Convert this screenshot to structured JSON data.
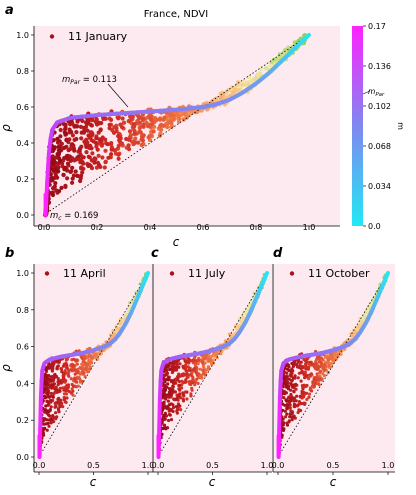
{
  "figure": {
    "title": "France, NDVI",
    "colorbar": {
      "label": "m",
      "min": 0.0,
      "max": 0.17,
      "ticks": [
        "0.17",
        "0.136",
        "0.102",
        "0.068",
        "0.034",
        "0.0"
      ],
      "annotation": "m_Par",
      "colors": [
        "#22e8f4",
        "#7f88f0",
        "#ff22ff"
      ]
    }
  },
  "chart_data": [
    {
      "panel": "a",
      "type": "scatter",
      "legend": "11 January",
      "xlabel": "c",
      "ylabel": "ρ",
      "xlim": [
        0.0,
        1.0
      ],
      "ylim": [
        0.0,
        1.0
      ],
      "xticks": [
        "0.0",
        "0.2",
        "0.4",
        "0.6",
        "0.8",
        "1.0"
      ],
      "yticks": [
        "0.0",
        "0.2",
        "0.4",
        "0.6",
        "0.8",
        "1.0"
      ],
      "annotations": [
        "m_Par = 0.113",
        "m_c = 0.169"
      ],
      "reference_line": {
        "x": [
          0.0,
          1.0
        ],
        "y": [
          0.0,
          1.0
        ],
        "style": "dotted"
      },
      "fit_curve": {
        "x": [
          0.006,
          0.01,
          0.015,
          0.02,
          0.03,
          0.05,
          0.1,
          0.2,
          0.3,
          0.4,
          0.5,
          0.6,
          0.65,
          0.7,
          0.75,
          0.8,
          0.85,
          0.9,
          0.95,
          1.0
        ],
        "y": [
          0.0,
          0.12,
          0.26,
          0.38,
          0.47,
          0.515,
          0.54,
          0.555,
          0.565,
          0.575,
          0.585,
          0.6,
          0.615,
          0.64,
          0.68,
          0.73,
          0.79,
          0.86,
          0.93,
          1.0
        ]
      },
      "scatter_density": "high"
    },
    {
      "panel": "b",
      "type": "scatter",
      "legend": "11 April",
      "xlabel": "c",
      "ylabel": "ρ",
      "xlim": [
        0.0,
        1.0
      ],
      "ylim": [
        0.0,
        1.0
      ],
      "xticks": [
        "0.0",
        "0.5",
        "1.0"
      ],
      "yticks": [
        "0.0",
        "0.2",
        "0.4",
        "0.6",
        "0.8",
        "1.0"
      ],
      "reference_line": {
        "x": [
          0.0,
          1.0
        ],
        "y": [
          0.0,
          1.0
        ],
        "style": "dotted"
      },
      "fit_curve": {
        "x": [
          0.005,
          0.01,
          0.015,
          0.02,
          0.03,
          0.05,
          0.1,
          0.2,
          0.3,
          0.4,
          0.5,
          0.6,
          0.65,
          0.7,
          0.75,
          0.8,
          0.85,
          0.9,
          0.95,
          1.0
        ],
        "y": [
          0.0,
          0.12,
          0.26,
          0.38,
          0.47,
          0.51,
          0.53,
          0.545,
          0.555,
          0.565,
          0.58,
          0.6,
          0.615,
          0.64,
          0.68,
          0.73,
          0.79,
          0.86,
          0.93,
          1.0
        ]
      },
      "scatter_density": "very high"
    },
    {
      "panel": "c",
      "type": "scatter",
      "legend": "11 July",
      "xlabel": "c",
      "ylabel": "",
      "xlim": [
        0.0,
        1.0
      ],
      "ylim": [
        0.0,
        1.0
      ],
      "xticks": [
        "0.0",
        "0.5",
        "1.0"
      ],
      "yticks": [],
      "reference_line": {
        "x": [
          0.0,
          1.0
        ],
        "y": [
          0.0,
          1.0
        ],
        "style": "dotted"
      },
      "fit_curve": {
        "x": [
          0.005,
          0.01,
          0.015,
          0.02,
          0.03,
          0.05,
          0.1,
          0.2,
          0.3,
          0.4,
          0.5,
          0.6,
          0.65,
          0.7,
          0.75,
          0.8,
          0.85,
          0.9,
          0.95,
          1.0
        ],
        "y": [
          0.0,
          0.12,
          0.26,
          0.38,
          0.47,
          0.51,
          0.53,
          0.545,
          0.555,
          0.565,
          0.58,
          0.6,
          0.615,
          0.64,
          0.68,
          0.73,
          0.79,
          0.86,
          0.93,
          1.0
        ]
      },
      "scatter_density": "very high"
    },
    {
      "panel": "d",
      "type": "scatter",
      "legend": "11 October",
      "xlabel": "c",
      "ylabel": "",
      "xlim": [
        0.0,
        1.0
      ],
      "ylim": [
        0.0,
        1.0
      ],
      "xticks": [
        "0.0",
        "0.5",
        "1.0"
      ],
      "yticks": [],
      "reference_line": {
        "x": [
          0.0,
          1.0
        ],
        "y": [
          0.0,
          1.0
        ],
        "style": "dotted"
      },
      "fit_curve": {
        "x": [
          0.005,
          0.01,
          0.015,
          0.02,
          0.03,
          0.05,
          0.1,
          0.2,
          0.3,
          0.4,
          0.5,
          0.6,
          0.65,
          0.7,
          0.75,
          0.8,
          0.85,
          0.9,
          0.95,
          1.0
        ],
        "y": [
          0.0,
          0.12,
          0.26,
          0.38,
          0.47,
          0.51,
          0.53,
          0.545,
          0.555,
          0.565,
          0.58,
          0.6,
          0.615,
          0.64,
          0.68,
          0.73,
          0.79,
          0.86,
          0.93,
          1.0
        ]
      },
      "scatter_density": "very high"
    }
  ]
}
